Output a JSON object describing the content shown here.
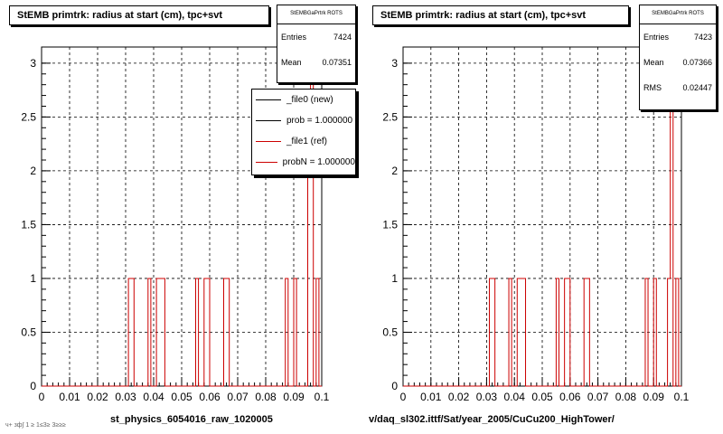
{
  "chart_data": [
    {
      "type": "bar",
      "title": "StEMB primtrk: radius at start (cm), tpc+svt",
      "xlim": [
        0,
        0.1
      ],
      "ylim": [
        0,
        3.15
      ],
      "x_ticks": [
        "0",
        "0.01",
        "0.02",
        "0.03",
        "0.04",
        "0.05",
        "0.06",
        "0.07",
        "0.08",
        "0.09",
        "0.1"
      ],
      "y_ticks": [
        "0",
        "0.5",
        "1",
        "1.5",
        "2",
        "2.5",
        "3"
      ],
      "grid": true,
      "bin_width": 0.001,
      "series": [
        {
          "name": "_file0 (new)",
          "color": "#000000",
          "bins": []
        },
        {
          "name": "_file1 (ref)",
          "color": "#cc0000",
          "bins": [
            {
              "x": 0.031,
              "y": 1
            },
            {
              "x": 0.032,
              "y": 1
            },
            {
              "x": 0.038,
              "y": 1
            },
            {
              "x": 0.041,
              "y": 1
            },
            {
              "x": 0.042,
              "y": 1
            },
            {
              "x": 0.043,
              "y": 1
            },
            {
              "x": 0.055,
              "y": 1
            },
            {
              "x": 0.058,
              "y": 1
            },
            {
              "x": 0.059,
              "y": 1
            },
            {
              "x": 0.065,
              "y": 1
            },
            {
              "x": 0.066,
              "y": 1
            },
            {
              "x": 0.087,
              "y": 1
            },
            {
              "x": 0.09,
              "y": 1
            },
            {
              "x": 0.095,
              "y": 2
            },
            {
              "x": 0.096,
              "y": 3
            },
            {
              "x": 0.098,
              "y": 1
            }
          ]
        }
      ],
      "stats": {
        "header": "StEMBGaPrtrk ROTS",
        "entries_label": "Entries",
        "entries": "7424",
        "mean_label": "Mean",
        "mean": "0.07351"
      },
      "legend": {
        "placement": "top-right",
        "items": [
          {
            "label": "_file0 (new)",
            "color": "#000000"
          },
          {
            "label": "prob = 1.000000",
            "color": "#000000"
          },
          {
            "label": "_file1 (ref)",
            "color": "#cc0000"
          },
          {
            "label": "probN = 1.000000",
            "color": "#cc0000"
          }
        ]
      },
      "caption": "st_physics_6054016_raw_1020005"
    },
    {
      "type": "bar",
      "title": "StEMB primtrk: radius at start (cm), tpc+svt",
      "xlim": [
        0,
        0.1
      ],
      "ylim": [
        0,
        3.15
      ],
      "x_ticks": [
        "0",
        "0.01",
        "0.02",
        "0.03",
        "0.04",
        "0.05",
        "0.06",
        "0.07",
        "0.08",
        "0.09",
        "0.1"
      ],
      "y_ticks": [
        "0",
        "0.5",
        "1",
        "1.5",
        "2",
        "2.5",
        "3"
      ],
      "grid": true,
      "bin_width": 0.001,
      "series": [
        {
          "name": "_file1 (ref)",
          "color": "#cc0000",
          "bins": [
            {
              "x": 0.031,
              "y": 1
            },
            {
              "x": 0.032,
              "y": 1
            },
            {
              "x": 0.038,
              "y": 1
            },
            {
              "x": 0.041,
              "y": 1
            },
            {
              "x": 0.042,
              "y": 1
            },
            {
              "x": 0.043,
              "y": 1
            },
            {
              "x": 0.055,
              "y": 1
            },
            {
              "x": 0.058,
              "y": 1
            },
            {
              "x": 0.059,
              "y": 1
            },
            {
              "x": 0.065,
              "y": 1
            },
            {
              "x": 0.066,
              "y": 1
            },
            {
              "x": 0.087,
              "y": 1
            },
            {
              "x": 0.09,
              "y": 1
            },
            {
              "x": 0.095,
              "y": 1
            },
            {
              "x": 0.096,
              "y": 3
            },
            {
              "x": 0.098,
              "y": 1
            }
          ]
        }
      ],
      "stats": {
        "header": "StEMBGaPrtrk ROTS",
        "entries_label": "Entries",
        "entries": "7423",
        "mean_label": "Mean",
        "mean": "0.07366",
        "rms_label": "RMS",
        "rms": "0.02447"
      },
      "caption": "v/daq_sl302.ittf/Sat/year_2005/CuCu200_HighTower/"
    }
  ],
  "footer": "ч+ зф∫ 1 ≥ 1≤3≥ 3≥≥≥"
}
